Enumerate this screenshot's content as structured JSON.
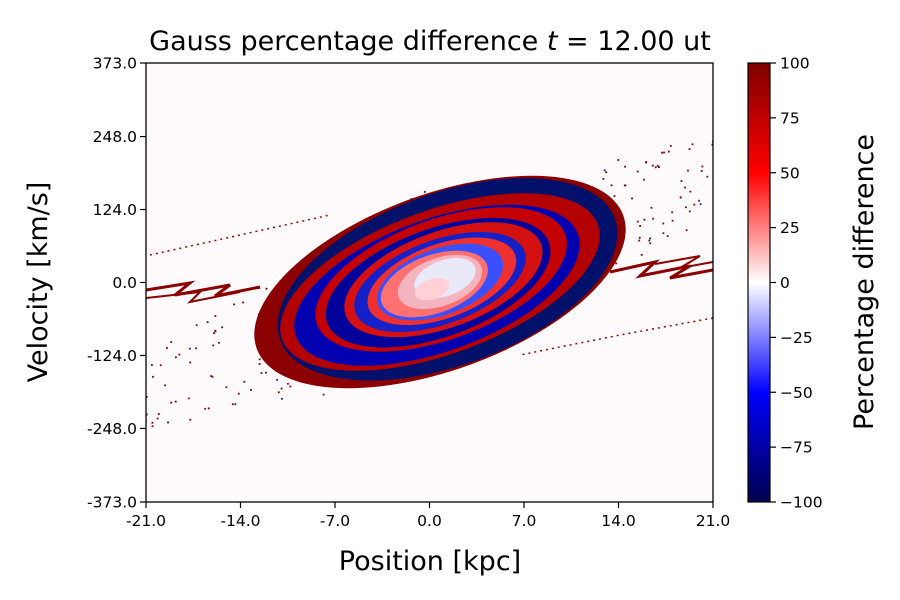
{
  "chart_data": {
    "type": "heatmap",
    "title_prefix": "Gauss percentage difference ",
    "title_var": "t",
    "title_eq": " = ",
    "title_value": " 12.00 ut",
    "xlabel": "Position [kpc]",
    "ylabel": "Velocity [km/s]",
    "xlim": [
      -21.0,
      21.0
    ],
    "ylim": [
      -373.0,
      373.0
    ],
    "x_ticks": [
      "-21.0",
      "-14.0",
      "-7.0",
      "0.0",
      "7.0",
      "14.0",
      "21.0"
    ],
    "x_tick_values": [
      -21.0,
      -14.0,
      -7.0,
      0.0,
      7.0,
      14.0,
      21.0
    ],
    "y_ticks": [
      "-373.0",
      "-248.0",
      "-124.0",
      "0.0",
      "124.0",
      "248.0",
      "373.0"
    ],
    "y_tick_values": [
      -373.0,
      -248.0,
      -124.0,
      0.0,
      124.0,
      248.0,
      373.0
    ],
    "colorbar": {
      "label": "Percentage difference",
      "range": [
        -100,
        100
      ],
      "ticks": [
        "100",
        "75",
        "50",
        "25",
        "0",
        "−25",
        "−50",
        "−75",
        "−100"
      ],
      "tick_values": [
        100,
        75,
        50,
        25,
        0,
        -25,
        -50,
        -75,
        -100
      ],
      "colormap": "seismic",
      "colors": [
        "#00004c",
        "#0000ff",
        "#ffffff",
        "#ff0000",
        "#7f0000"
      ]
    }
  }
}
